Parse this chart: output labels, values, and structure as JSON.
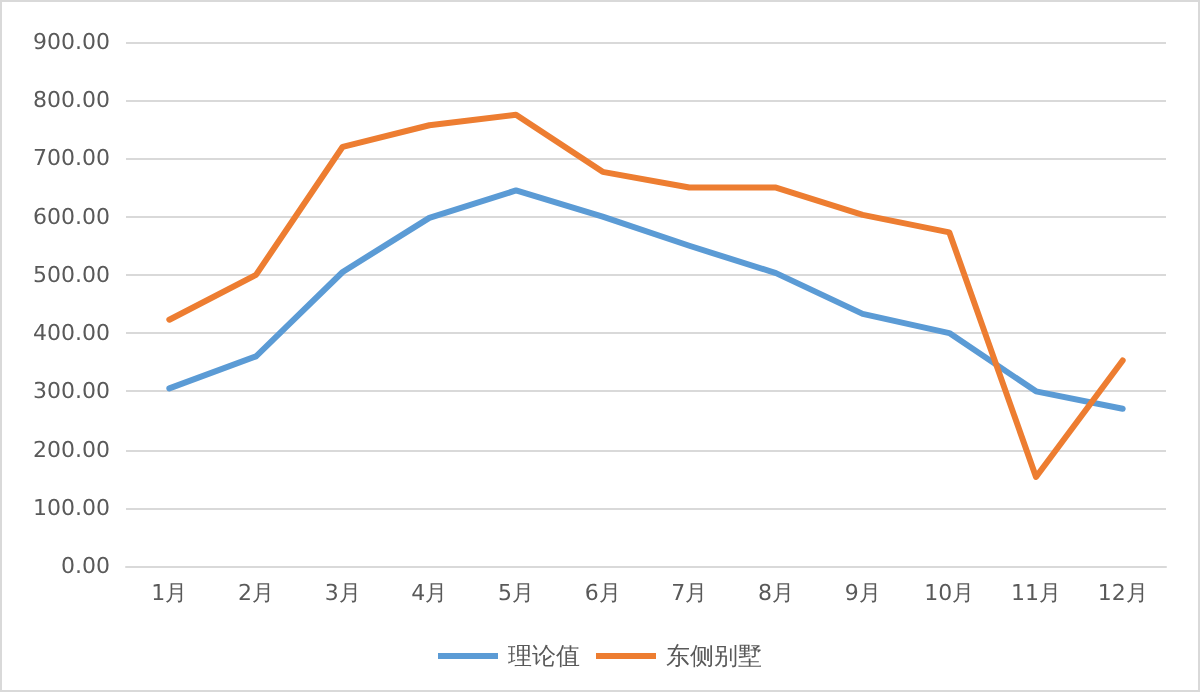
{
  "chart_data": {
    "type": "line",
    "categories": [
      "1月",
      "2月",
      "3月",
      "4月",
      "5月",
      "6月",
      "7月",
      "8月",
      "9月",
      "10月",
      "11月",
      "12月"
    ],
    "series": [
      {
        "name": "理论值",
        "color": "#5b9bd5",
        "values": [
          305,
          360,
          505,
          598,
          645,
          600,
          550,
          503,
          433,
          400,
          300,
          270
        ]
      },
      {
        "name": "东侧别墅",
        "color": "#ed7d31",
        "values": [
          423,
          500,
          720,
          757,
          775,
          677,
          650,
          650,
          603,
          573,
          153,
          353
        ]
      }
    ],
    "ylim": [
      0,
      900
    ],
    "yticks": [
      {
        "value": 0,
        "label": "0.00"
      },
      {
        "value": 100,
        "label": "100.00"
      },
      {
        "value": 200,
        "label": "200.00"
      },
      {
        "value": 300,
        "label": "300.00"
      },
      {
        "value": 400,
        "label": "400.00"
      },
      {
        "value": 500,
        "label": "500.00"
      },
      {
        "value": 600,
        "label": "600.00"
      },
      {
        "value": 700,
        "label": "700.00"
      },
      {
        "value": 800,
        "label": "800.00"
      },
      {
        "value": 900,
        "label": "900.00"
      }
    ],
    "grid": "y",
    "legend": "bottom",
    "marker": "none",
    "line_style": "solid"
  }
}
